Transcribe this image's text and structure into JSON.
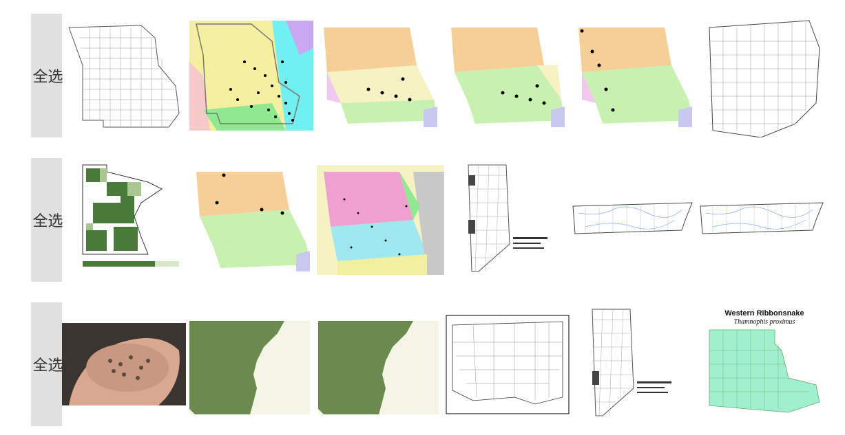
{
  "rows": [
    {
      "select_all_label": "全选",
      "thumbs": [
        {
          "name": "missouri-county-dots-cyan-orange",
          "type": "county-map"
        },
        {
          "name": "missouri-watershed-map",
          "type": "colored-map"
        },
        {
          "name": "missouri-ecoregion-map-a",
          "type": "colored-map"
        },
        {
          "name": "missouri-ecoregion-map-b",
          "type": "colored-map"
        },
        {
          "name": "missouri-ecoregion-map-c",
          "type": "colored-map"
        },
        {
          "name": "ohio-county-map",
          "type": "county-map"
        }
      ]
    },
    {
      "select_all_label": "全选",
      "thumbs": [
        {
          "name": "minnesota-green-county-map",
          "type": "choropleth"
        },
        {
          "name": "missouri-ecoregion-map-d",
          "type": "colored-map"
        },
        {
          "name": "missouri-detailed-ecoregion-map",
          "type": "colored-map"
        },
        {
          "name": "vermont-town-map-a",
          "type": "county-map"
        },
        {
          "name": "tennessee-county-map-a",
          "type": "county-map"
        },
        {
          "name": "tennessee-county-map-b",
          "type": "county-map"
        }
      ]
    },
    {
      "select_all_label": "全选",
      "thumbs": [
        {
          "name": "hand-holding-frog-eggs-photo",
          "type": "photo"
        },
        {
          "name": "arkansas-green-map-a",
          "type": "colored-map"
        },
        {
          "name": "arkansas-green-map-b",
          "type": "colored-map"
        },
        {
          "name": "north-america-state-map",
          "type": "county-map"
        },
        {
          "name": "vermont-town-map-b",
          "type": "county-map"
        },
        {
          "name": "louisiana-parish-map",
          "type": "colored-map",
          "title": "Western Ribbonsnake",
          "subtitle": "Thamnophis proximus"
        }
      ]
    }
  ],
  "colors": {
    "select_bg": "#e0e0e0",
    "eco_orange": "#f6cf96",
    "eco_green": "#c8f0b0",
    "eco_yellow": "#f7f2c4",
    "eco_purple": "#c8c8f0",
    "eco_pink": "#f0c8f0",
    "watershed_yellow": "#f5f0a0",
    "watershed_cyan": "#70f0f0",
    "arkansas_green": "#6b8a50",
    "arkansas_cream": "#f5f5e6",
    "louisiana_mint": "#a0f0d0"
  }
}
